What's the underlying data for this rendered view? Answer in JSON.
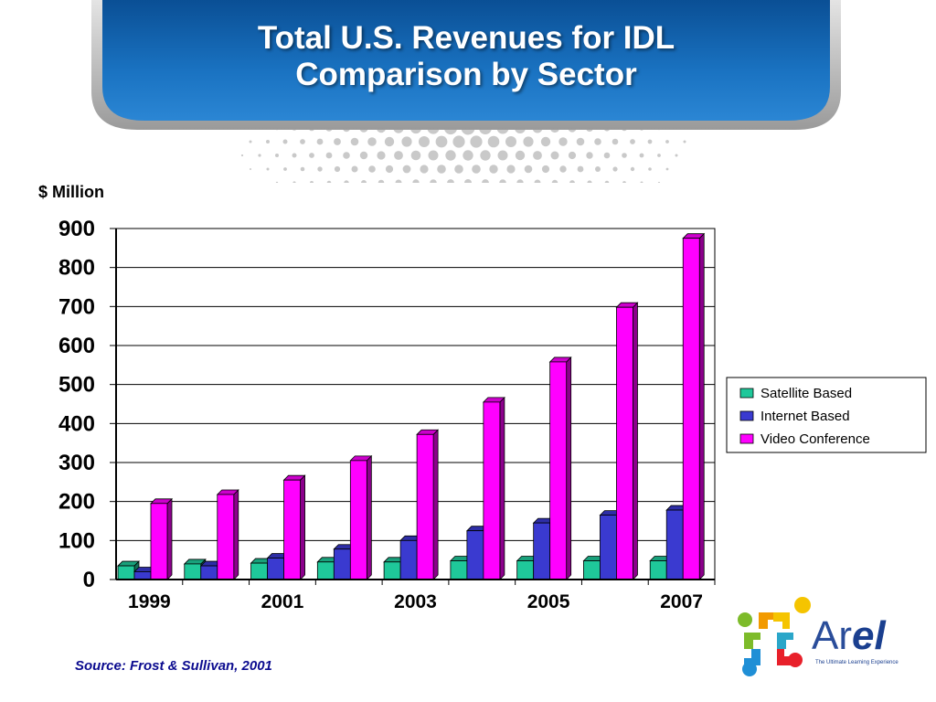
{
  "slide": {
    "title_line1": "Total U.S. Revenues for IDL",
    "title_line2": "Comparison by Sector",
    "source": "Source: Frost & Sullivan, 2001"
  },
  "logo": {
    "wordmark": "Arel",
    "tagline": "The Ultimate Learning Experience"
  },
  "chart_data": {
    "type": "bar",
    "title": "",
    "ylabel": "$ Million",
    "xlabel": "",
    "ylim": [
      0,
      900
    ],
    "yticks": [
      0,
      100,
      200,
      300,
      400,
      500,
      600,
      700,
      800,
      900
    ],
    "categories": [
      "1999",
      "2000",
      "2001",
      "2002",
      "2003",
      "2004",
      "2005",
      "2006",
      "2007"
    ],
    "xtick_labels": [
      "1999",
      "",
      "2001",
      "",
      "2003",
      "",
      "2005",
      "",
      "2007"
    ],
    "grid": "horizontal",
    "legend_position": "right",
    "series": [
      {
        "name": "Satellite Based",
        "color": "#1fc89a",
        "values": [
          35,
          40,
          42,
          45,
          45,
          48,
          48,
          48,
          48
        ]
      },
      {
        "name": "Internet Based",
        "color": "#3a3ad0",
        "values": [
          20,
          35,
          55,
          78,
          100,
          125,
          145,
          165,
          178
        ]
      },
      {
        "name": "Video Conference",
        "color": "#ff00ff",
        "values": [
          195,
          218,
          255,
          305,
          372,
          455,
          558,
          698,
          875
        ]
      }
    ]
  }
}
